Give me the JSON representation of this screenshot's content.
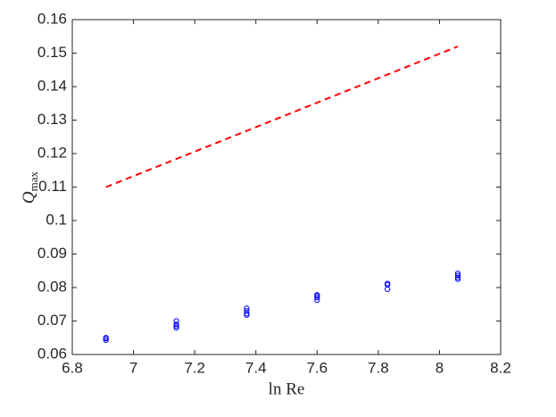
{
  "chart_data": {
    "type": "scatter",
    "xlabel": "ln Re",
    "ylabel": {
      "base": "Q",
      "sub": "max"
    },
    "xlim": [
      6.8,
      8.2
    ],
    "xticks": [
      6.8,
      7,
      7.2,
      7.4,
      7.6,
      7.8,
      8,
      8.2
    ],
    "ylim": [
      0.06,
      0.16
    ],
    "yticks": [
      0.06,
      0.07,
      0.08,
      0.09,
      0.1,
      0.11,
      0.12,
      0.13,
      0.14,
      0.15,
      0.16
    ],
    "box": true,
    "series": [
      {
        "color": "#ff0000",
        "style": "dashed-line",
        "x": [
          6.91,
          7.14,
          7.37,
          7.6,
          7.83,
          8.06
        ],
        "values": [
          0.11,
          0.1184,
          0.1268,
          0.1352,
          0.1436,
          0.152
        ]
      },
      {
        "color": "#0000ff",
        "style": "open-circle",
        "x": [
          6.91,
          6.91,
          6.91,
          7.14,
          7.14,
          7.14,
          7.14,
          7.37,
          7.37,
          7.37,
          7.37,
          7.6,
          7.6,
          7.6,
          7.6,
          7.83,
          7.83,
          7.83,
          8.06,
          8.06,
          8.06,
          8.06
        ],
        "values": [
          0.0643,
          0.0648,
          0.065,
          0.068,
          0.0685,
          0.069,
          0.07,
          0.0718,
          0.0722,
          0.073,
          0.0738,
          0.0762,
          0.077,
          0.0775,
          0.0778,
          0.0795,
          0.0808,
          0.0812,
          0.0825,
          0.083,
          0.0836,
          0.0842
        ]
      }
    ]
  }
}
